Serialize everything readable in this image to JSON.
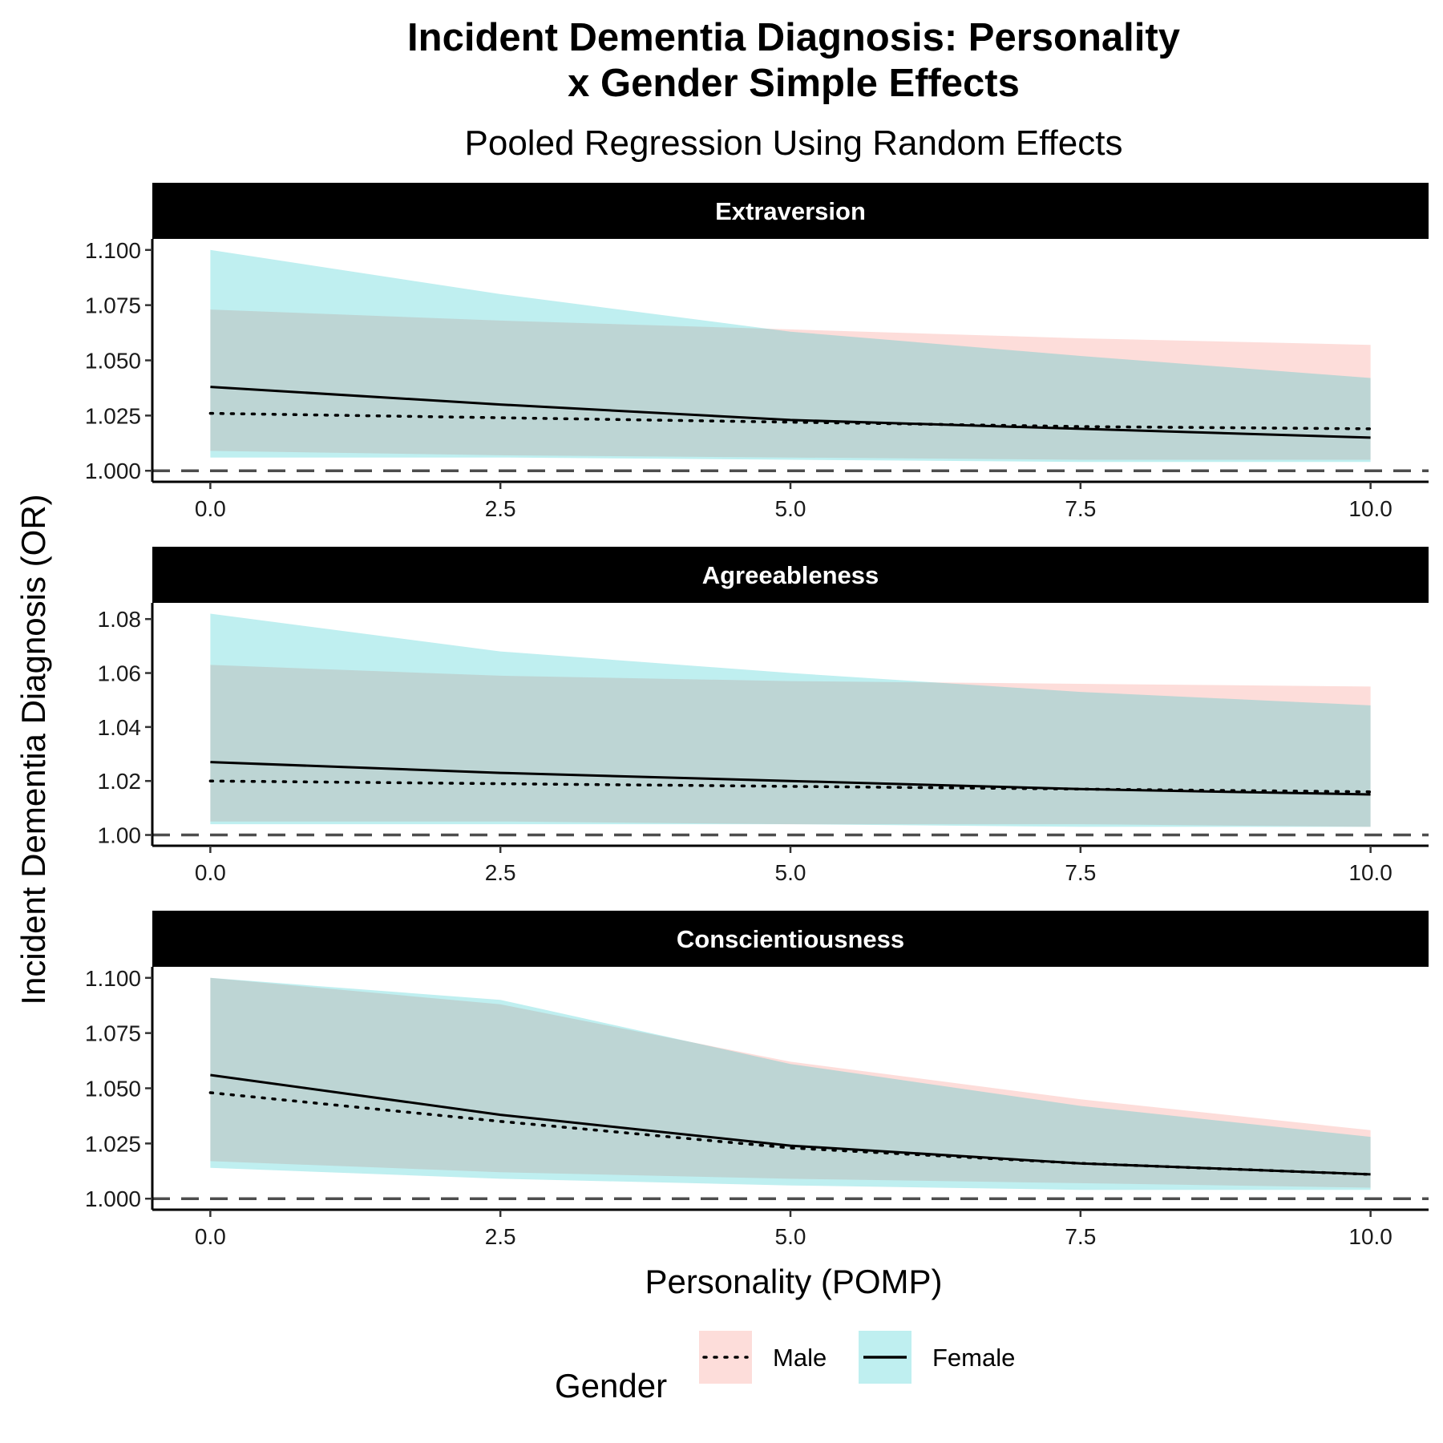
{
  "title_line1": "Incident Dementia Diagnosis: Personality",
  "title_line2": "x Gender Simple Effects",
  "subtitle": "Pooled Regression Using Random Effects",
  "colors": {
    "male_fill": "#F8766D",
    "female_fill": "#00BFC4",
    "strip_bg": "#000000",
    "reference_line": "#4d4d4d"
  },
  "legend": {
    "title": "Gender",
    "items": [
      {
        "label": "Male",
        "linetype": "dotted",
        "fill": "#F8766D"
      },
      {
        "label": "Female",
        "linetype": "solid",
        "fill": "#00BFC4"
      }
    ]
  },
  "chart_data": {
    "type": "line",
    "xlabel": "Personality (POMP)",
    "ylabel": "Incident Dementia Diagnosis (OR)",
    "x_ticks": [
      "0.0",
      "2.5",
      "5.0",
      "7.5",
      "10.0"
    ],
    "x_values": [
      0,
      2.5,
      5,
      7.5,
      10
    ],
    "xlim": [
      -0.5,
      10.5
    ],
    "reference_line": 1.0,
    "grid": false,
    "legend_position": "bottom",
    "panels": [
      {
        "name": "Extraversion",
        "ylim": [
          0.995,
          1.105
        ],
        "y_ticks": [
          "1.000",
          "1.025",
          "1.050",
          "1.075",
          "1.100"
        ],
        "y_tick_values": [
          1.0,
          1.025,
          1.05,
          1.075,
          1.1
        ],
        "series": [
          {
            "name": "Male",
            "estimate": [
              1.026,
              1.024,
              1.022,
              1.02,
              1.019
            ],
            "lower": [
              1.009,
              1.007,
              1.006,
              1.005,
              1.005
            ],
            "upper": [
              1.073,
              1.068,
              1.064,
              1.06,
              1.057
            ]
          },
          {
            "name": "Female",
            "estimate": [
              1.038,
              1.03,
              1.023,
              1.019,
              1.015
            ],
            "lower": [
              1.006,
              1.006,
              1.005,
              1.004,
              1.004
            ],
            "upper": [
              1.1,
              1.08,
              1.063,
              1.052,
              1.042
            ]
          }
        ]
      },
      {
        "name": "Agreeableness",
        "ylim": [
          0.996,
          1.086
        ],
        "y_ticks": [
          "1.00",
          "1.02",
          "1.04",
          "1.06",
          "1.08"
        ],
        "y_tick_values": [
          1.0,
          1.02,
          1.04,
          1.06,
          1.08
        ],
        "series": [
          {
            "name": "Male",
            "estimate": [
              1.02,
              1.019,
              1.018,
              1.017,
              1.016
            ],
            "lower": [
              1.005,
              1.005,
              1.004,
              1.004,
              1.003
            ],
            "upper": [
              1.063,
              1.059,
              1.057,
              1.056,
              1.055
            ]
          },
          {
            "name": "Female",
            "estimate": [
              1.027,
              1.023,
              1.02,
              1.017,
              1.015
            ],
            "lower": [
              1.004,
              1.004,
              1.004,
              1.003,
              1.003
            ],
            "upper": [
              1.082,
              1.068,
              1.06,
              1.053,
              1.048
            ]
          }
        ]
      },
      {
        "name": "Conscientiousness",
        "ylim": [
          0.995,
          1.105
        ],
        "y_ticks": [
          "1.000",
          "1.025",
          "1.050",
          "1.075",
          "1.100"
        ],
        "y_tick_values": [
          1.0,
          1.025,
          1.05,
          1.075,
          1.1
        ],
        "series": [
          {
            "name": "Male",
            "estimate": [
              1.048,
              1.035,
              1.023,
              1.016,
              1.011
            ],
            "lower": [
              1.017,
              1.012,
              1.009,
              1.007,
              1.005
            ],
            "upper": [
              1.1,
              1.088,
              1.062,
              1.045,
              1.031
            ]
          },
          {
            "name": "Female",
            "estimate": [
              1.056,
              1.038,
              1.024,
              1.016,
              1.011
            ],
            "lower": [
              1.014,
              1.009,
              1.006,
              1.004,
              1.004
            ],
            "upper": [
              1.1,
              1.09,
              1.061,
              1.042,
              1.028
            ]
          }
        ]
      }
    ]
  }
}
